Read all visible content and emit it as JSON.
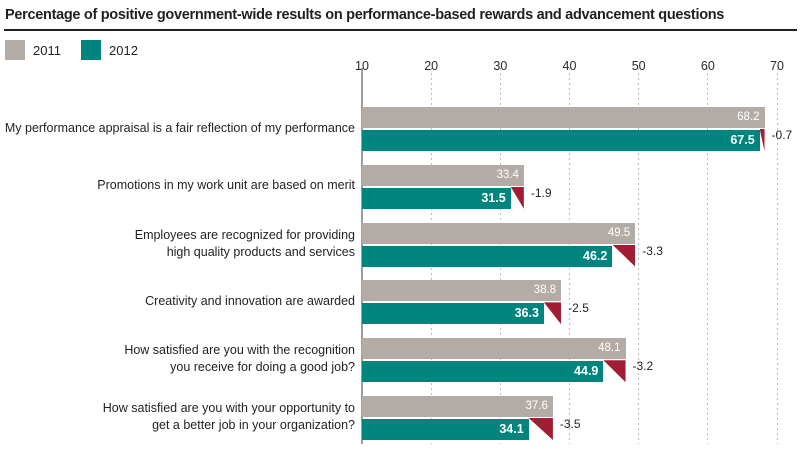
{
  "title": "Percentage of positive government-wide results on performance-based rewards and advancement questions",
  "legend": {
    "items": [
      {
        "label": "2011",
        "color": "#b3aca6"
      },
      {
        "label": "2012",
        "color": "#00847e"
      }
    ]
  },
  "colors": {
    "bar_2011": "#b3aca6",
    "bar_2012": "#00847e",
    "decline_marker": "#a01d33",
    "text": "#231f20",
    "axis_solid_line": "#9e9e9e",
    "gridline_dashed": "#bcbcbc"
  },
  "chart_data": {
    "type": "bar",
    "orientation": "horizontal",
    "title": "Percentage of positive government-wide results on performance-based rewards and advancement questions",
    "xlim": [
      10,
      70
    ],
    "x_ticks": [
      10,
      20,
      30,
      40,
      50,
      60,
      70
    ],
    "grid": "vertical-dashed",
    "legend_position": "top-left",
    "categories": [
      [
        "My performance appraisal is a fair reflection of my performance"
      ],
      [
        "Promotions in my work unit are based on merit"
      ],
      [
        "Employees are recognized for providing",
        "high quality products and services"
      ],
      [
        "Creativity and innovation are awarded"
      ],
      [
        "How satisfied are you with the recognition",
        "you receive for doing a good job?"
      ],
      [
        "How satisfied are you with your opportunity to",
        "get a better job in your organization?"
      ]
    ],
    "series": [
      {
        "name": "2011",
        "values": [
          68.2,
          33.4,
          49.5,
          38.8,
          48.1,
          37.6
        ]
      },
      {
        "name": "2012",
        "values": [
          67.5,
          31.5,
          46.2,
          36.3,
          44.9,
          34.1
        ]
      }
    ],
    "deltas": [
      "-0.7",
      "-1.9",
      "-3.3",
      "-2.5",
      "-3.2",
      "-3.5"
    ]
  }
}
